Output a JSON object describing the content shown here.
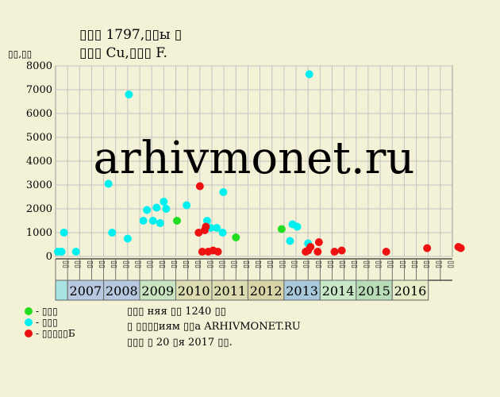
{
  "chart_data": {
    "type": "scatter",
    "title": "▯▯▯ 1797,▯▯ы ▯",
    "subtitle": "▯▯▯ Cu,▯▯▯ F.",
    "ylabel": "▯▯,▯▯",
    "watermark": "arhivmonet.ru",
    "ylim": [
      0,
      8000
    ],
    "yticks": [
      0,
      1000,
      2000,
      3000,
      4000,
      5000,
      6000,
      7000,
      8000
    ],
    "grid": true,
    "quarter_labels": [
      "▯▯",
      "▯▯",
      "▯▯",
      "▯▯"
    ],
    "years": [
      {
        "label": "",
        "color": "#a8e2e2"
      },
      {
        "label": "2007",
        "color": "#b8c8e0"
      },
      {
        "label": "2008",
        "color": "#b8c8e0"
      },
      {
        "label": "2009",
        "color": "#c8e4c0"
      },
      {
        "label": "2010",
        "color": "#dcdcb0"
      },
      {
        "label": "2011",
        "color": "#dcdcb0"
      },
      {
        "label": "2012",
        "color": "#d8d4a8"
      },
      {
        "label": "2013",
        "color": "#a8c8dc"
      },
      {
        "label": "2014",
        "color": "#c8e8c8"
      },
      {
        "label": "2015",
        "color": "#b8dcb8"
      },
      {
        "label": "2016",
        "color": "#e8ecc8"
      }
    ],
    "series": [
      {
        "name": "▯▯▯",
        "color": "#22dd22",
        "points": [
          [
            10.1,
            1500
          ],
          [
            15.0,
            800
          ],
          [
            18.8,
            1150
          ]
        ]
      },
      {
        "name": "▯▯▯",
        "color": "#00f0f0",
        "points": [
          [
            0.2,
            200
          ],
          [
            0.5,
            200
          ],
          [
            0.7,
            1000
          ],
          [
            1.7,
            200
          ],
          [
            4.4,
            3050
          ],
          [
            4.7,
            1000
          ],
          [
            6.0,
            750
          ],
          [
            6.1,
            6800
          ],
          [
            7.3,
            1500
          ],
          [
            7.6,
            1950
          ],
          [
            8.1,
            1500
          ],
          [
            8.4,
            2050
          ],
          [
            8.7,
            1400
          ],
          [
            9.0,
            2300
          ],
          [
            9.2,
            2000
          ],
          [
            10.9,
            2150
          ],
          [
            12.6,
            1500
          ],
          [
            12.9,
            1200
          ],
          [
            13.4,
            1200
          ],
          [
            13.9,
            1000
          ],
          [
            13.95,
            2700
          ],
          [
            19.5,
            650
          ],
          [
            19.7,
            1350
          ],
          [
            20.1,
            1250
          ],
          [
            21.0,
            550
          ],
          [
            21.1,
            7650
          ]
        ]
      },
      {
        "name": "▯▯▯▯▯Б",
        "color": "#ee1111",
        "points": [
          [
            11.9,
            1000
          ],
          [
            12.0,
            2950
          ],
          [
            12.2,
            200
          ],
          [
            12.4,
            1100
          ],
          [
            12.5,
            1250
          ],
          [
            12.7,
            200
          ],
          [
            13.1,
            250
          ],
          [
            13.5,
            200
          ],
          [
            20.8,
            200
          ],
          [
            21.0,
            250
          ],
          [
            21.2,
            400
          ],
          [
            21.8,
            200
          ],
          [
            21.9,
            600
          ],
          [
            23.2,
            200
          ],
          [
            23.8,
            250
          ],
          [
            27.5,
            200
          ],
          [
            30.9,
            350
          ],
          [
            33.5,
            400
          ],
          [
            33.7,
            350
          ]
        ]
      }
    ]
  },
  "notes": [
    "▯▯▯ няя ▯▯ 1240 ▯▯",
    "▯ ▯▯▯▯иям ▯▯а ARHIVMONET.RU",
    "▯▯▯ ▯ 20 ▯я 2017 ▯▯."
  ]
}
